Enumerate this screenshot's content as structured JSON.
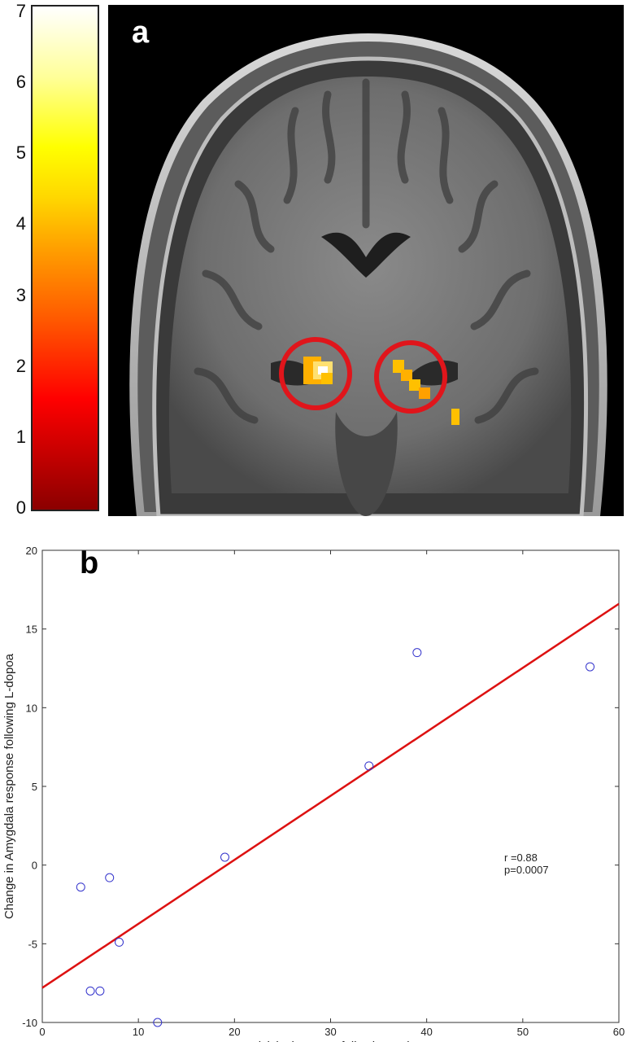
{
  "panel_a": {
    "label": "a",
    "colorbar": {
      "ticks": [
        0,
        1,
        2,
        3,
        4,
        5,
        6,
        7
      ],
      "min": 0,
      "max": 7
    }
  },
  "panel_b": {
    "label": "b"
  },
  "chart_data": {
    "type": "scatter",
    "xlabel": "Impulsivity increase following L-dopa",
    "ylabel": "Change in Amygdala response following L-dopoa",
    "xlim": [
      0,
      60
    ],
    "ylim": [
      -10,
      20
    ],
    "xticks": [
      0,
      10,
      20,
      30,
      40,
      50,
      60
    ],
    "yticks": [
      -10,
      -5,
      0,
      5,
      10,
      15,
      20
    ],
    "points": [
      {
        "x": 4,
        "y": -1.4
      },
      {
        "x": 5,
        "y": -8.0
      },
      {
        "x": 6,
        "y": -8.0
      },
      {
        "x": 7,
        "y": -0.8
      },
      {
        "x": 8,
        "y": -4.9
      },
      {
        "x": 12,
        "y": -10.0
      },
      {
        "x": 19,
        "y": 0.5
      },
      {
        "x": 34,
        "y": 6.3
      },
      {
        "x": 39,
        "y": 13.5
      },
      {
        "x": 57,
        "y": 12.6
      }
    ],
    "fit_line": {
      "x": [
        0,
        60
      ],
      "y": [
        -7.8,
        16.6
      ]
    },
    "marker_color": "#3333cc",
    "line_color": "#dd1111",
    "annotation": [
      "r =0.88",
      "p=0.0007"
    ]
  }
}
